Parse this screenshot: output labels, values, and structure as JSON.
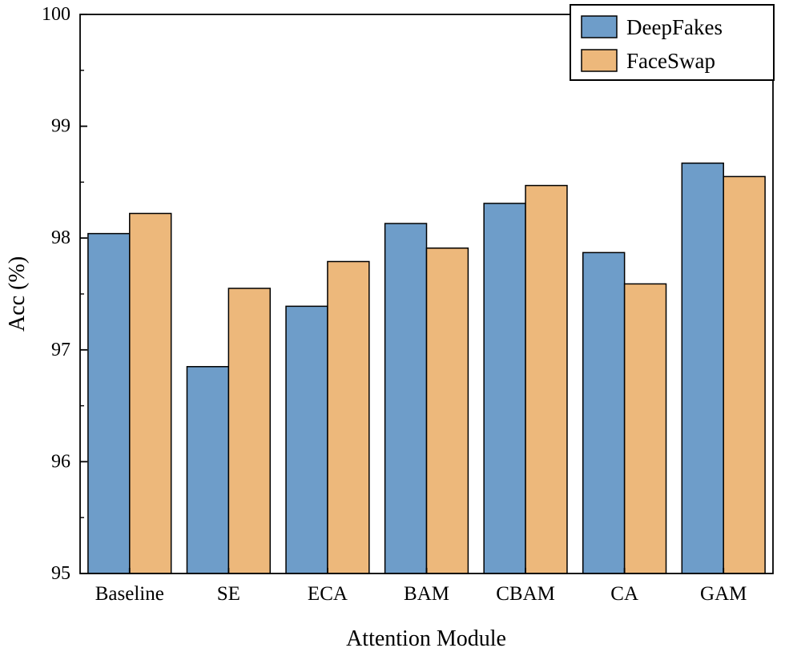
{
  "chart_data": {
    "type": "bar",
    "title": "",
    "xlabel": "Attention Module",
    "ylabel": "Acc (%)",
    "categories": [
      "Baseline",
      "SE",
      "ECA",
      "BAM",
      "CBAM",
      "CA",
      "GAM"
    ],
    "series": [
      {
        "name": "DeepFakes",
        "color": "#6E9DC9",
        "values": [
          98.04,
          96.85,
          97.39,
          98.13,
          98.31,
          97.87,
          98.67
        ]
      },
      {
        "name": "FaceSwap",
        "color": "#EDB87B",
        "values": [
          98.22,
          97.55,
          97.79,
          97.91,
          98.47,
          97.59,
          98.55
        ]
      }
    ],
    "ylim": [
      95,
      100
    ],
    "yticks": [
      95,
      96,
      97,
      98,
      99,
      100
    ],
    "minor_tick_step": 0.5,
    "grid": false,
    "legend_position": "top-right",
    "axis_color": "#000000",
    "background": "#FFFFFF"
  }
}
